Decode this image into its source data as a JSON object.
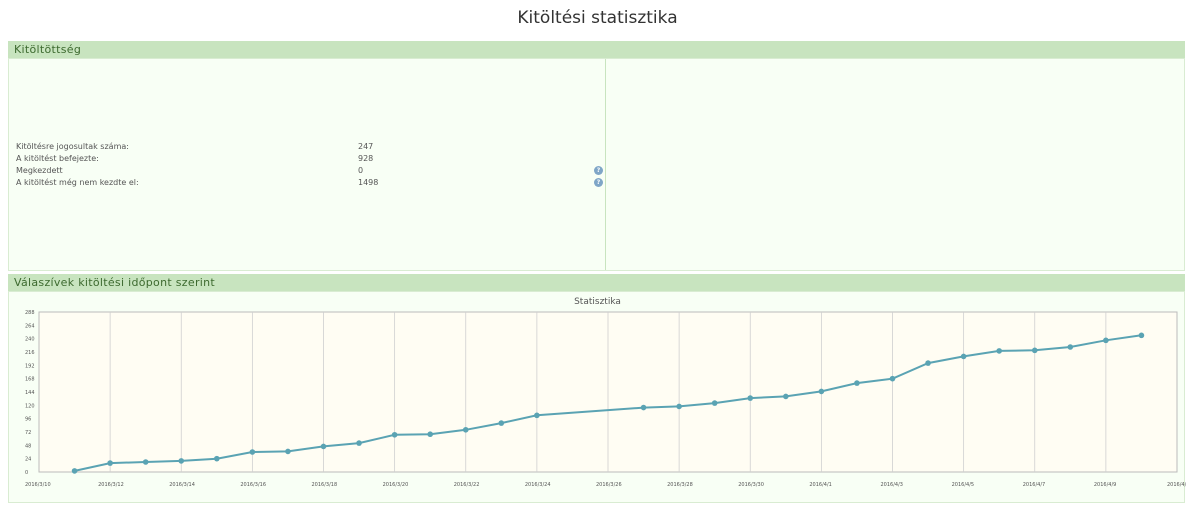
{
  "page": {
    "title": "Kitöltési statisztika"
  },
  "completion": {
    "header": "Kitöltöttség",
    "rows": [
      {
        "label": "Kitöltésre jogosultak száma:",
        "value": "247",
        "has_help": false
      },
      {
        "label": "A kitöltést befejezte:",
        "value": "928",
        "has_help": false
      },
      {
        "label": "Megkezdett",
        "value": "0",
        "has_help": true
      },
      {
        "label": "A kitöltést még nem kezdte el:",
        "value": "1498",
        "has_help": true
      }
    ],
    "help_icon": "help-icon"
  },
  "responses": {
    "header": "Válaszívek kitöltési időpont szerint"
  },
  "colors": {
    "header_bg": "#c8e4bf",
    "header_text": "#3d6a2f",
    "line": "#5aa3b3",
    "plot_bg": "#fffdf3",
    "grid": "#cfcfcf"
  },
  "chart_data": {
    "type": "line",
    "title": "Statisztika",
    "xlabel": "",
    "ylabel": "",
    "ylim": [
      0,
      288
    ],
    "y_ticks": [
      "0",
      "24",
      "48",
      "72",
      "96",
      "120",
      "144",
      "168",
      "192",
      "216",
      "240",
      "264",
      "288"
    ],
    "x_range": [
      "2016/3/10",
      "2016/4/11"
    ],
    "x_ticks": [
      "2016/3/10",
      "2016/3/12",
      "2016/3/14",
      "2016/3/16",
      "2016/3/18",
      "2016/3/20",
      "2016/3/22",
      "2016/3/24",
      "2016/3/26",
      "2016/3/28",
      "2016/3/30",
      "2016/4/1",
      "2016/4/3",
      "2016/4/5",
      "2016/4/7",
      "2016/4/9",
      "2016/4/11"
    ],
    "grid": true,
    "series": [
      {
        "x": [
          "2016/3/11",
          "2016/3/12",
          "2016/3/13",
          "2016/3/14",
          "2016/3/15",
          "2016/3/16",
          "2016/3/17",
          "2016/3/18",
          "2016/3/19",
          "2016/3/20",
          "2016/3/21",
          "2016/3/22",
          "2016/3/23",
          "2016/3/24",
          "2016/3/27",
          "2016/3/28",
          "2016/3/29",
          "2016/3/30",
          "2016/3/31",
          "2016/4/1",
          "2016/4/2",
          "2016/4/3",
          "2016/4/4",
          "2016/4/5",
          "2016/4/6",
          "2016/4/7",
          "2016/4/8",
          "2016/4/9",
          "2016/4/10"
        ],
        "values": [
          2,
          16,
          18,
          20,
          24,
          36,
          37,
          46,
          52,
          67,
          68,
          76,
          88,
          102,
          116,
          118,
          124,
          133,
          136,
          145,
          160,
          168,
          196,
          208,
          218,
          219,
          225,
          237,
          246
        ]
      }
    ]
  }
}
